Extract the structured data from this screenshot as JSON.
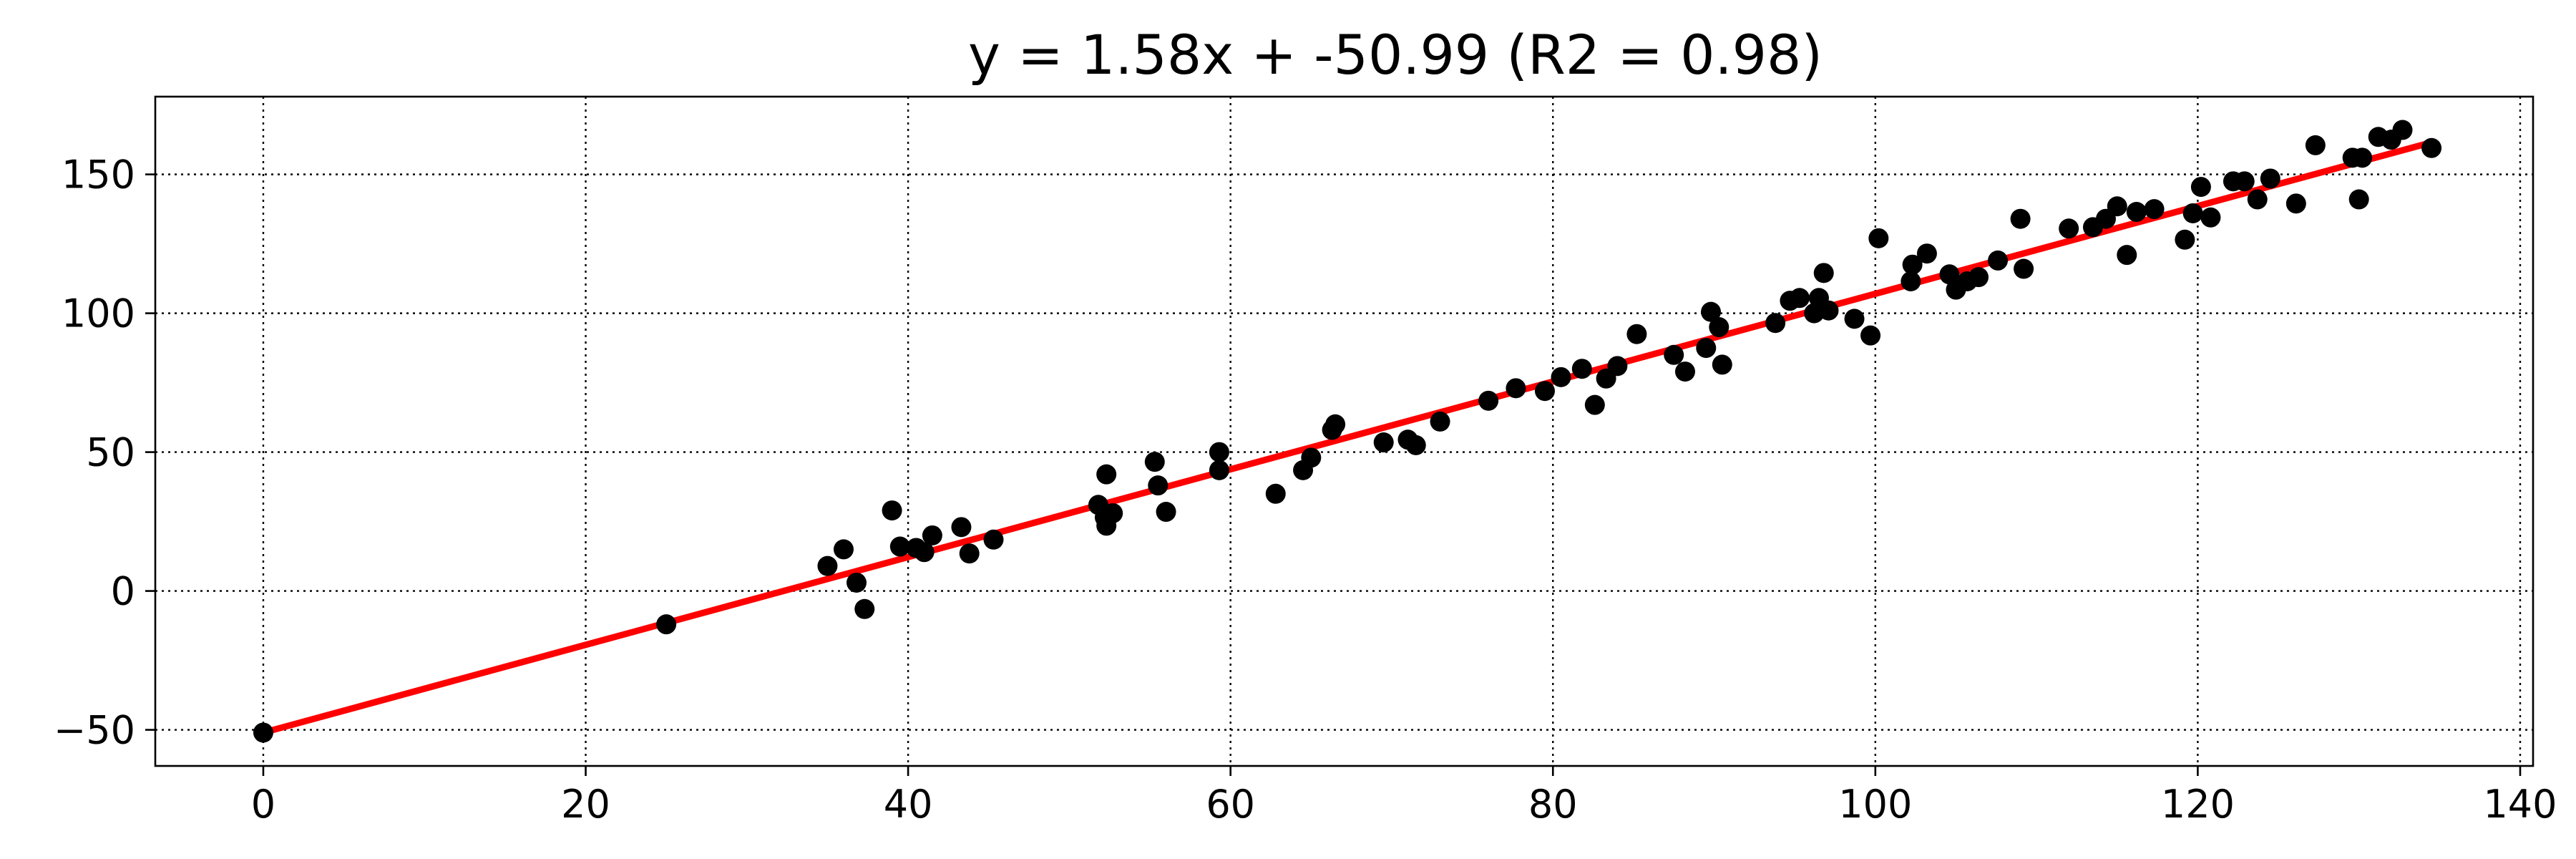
{
  "chart_data": {
    "type": "scatter",
    "title": "y = 1.58x + -50.99 (R2 = 0.98)",
    "xlabel": "",
    "ylabel": "",
    "xlim": [
      -6.7,
      140.8
    ],
    "ylim": [
      -63,
      178
    ],
    "xticks": [
      0,
      20,
      40,
      60,
      80,
      100,
      120,
      140
    ],
    "xtick_labels": [
      "0",
      "20",
      "40",
      "60",
      "80",
      "100",
      "120",
      "140"
    ],
    "yticks": [
      -50,
      0,
      50,
      100,
      150
    ],
    "ytick_labels": [
      "−50",
      "0",
      "50",
      "100",
      "150"
    ],
    "grid": true,
    "point_color": "#000000",
    "fit_line": {
      "slope": 1.58,
      "intercept": -50.99,
      "x_range": [
        0,
        134.5
      ],
      "color": "#ff0000"
    },
    "points": [
      [
        0,
        -51
      ],
      [
        25,
        -12
      ],
      [
        35,
        9
      ],
      [
        36,
        15
      ],
      [
        36.8,
        3
      ],
      [
        37.3,
        -6.5
      ],
      [
        39,
        29
      ],
      [
        39.5,
        16
      ],
      [
        40.5,
        15.5
      ],
      [
        41,
        14
      ],
      [
        41.5,
        20
      ],
      [
        43.3,
        23
      ],
      [
        43.8,
        13.5
      ],
      [
        45.3,
        18.5
      ],
      [
        51.8,
        31
      ],
      [
        52.2,
        26.5
      ],
      [
        52.3,
        23.5
      ],
      [
        52.3,
        42
      ],
      [
        52.7,
        28
      ],
      [
        55.3,
        46.5
      ],
      [
        55.5,
        38
      ],
      [
        56,
        28.5
      ],
      [
        59.3,
        43.5
      ],
      [
        59.3,
        50
      ],
      [
        62.8,
        35
      ],
      [
        64.5,
        43.5
      ],
      [
        65,
        48
      ],
      [
        66.3,
        58
      ],
      [
        66.5,
        60
      ],
      [
        69.5,
        53.5
      ],
      [
        71,
        54.5
      ],
      [
        71.5,
        52.5
      ],
      [
        73,
        61
      ],
      [
        76,
        68.5
      ],
      [
        77.7,
        73
      ],
      [
        79.5,
        72
      ],
      [
        80.5,
        77
      ],
      [
        81.8,
        80
      ],
      [
        82.6,
        67
      ],
      [
        83.3,
        76.5
      ],
      [
        84,
        81
      ],
      [
        85.2,
        92.5
      ],
      [
        87.5,
        85
      ],
      [
        88.2,
        79
      ],
      [
        89.5,
        87.5
      ],
      [
        89.8,
        100.5
      ],
      [
        90.3,
        95
      ],
      [
        90.5,
        81.5
      ],
      [
        93.8,
        96.5
      ],
      [
        94.7,
        104.5
      ],
      [
        95.3,
        105.5
      ],
      [
        96.2,
        100
      ],
      [
        96.5,
        105.5
      ],
      [
        96.8,
        114.5
      ],
      [
        97.1,
        101
      ],
      [
        98.7,
        98
      ],
      [
        99.7,
        92
      ],
      [
        100.2,
        127
      ],
      [
        102.2,
        111.5
      ],
      [
        102.3,
        117.5
      ],
      [
        103.2,
        121.5
      ],
      [
        104.6,
        114
      ],
      [
        105,
        108.5
      ],
      [
        105.7,
        111.5
      ],
      [
        106.4,
        113
      ],
      [
        107.6,
        119
      ],
      [
        109,
        134
      ],
      [
        109.2,
        116
      ],
      [
        112,
        130.5
      ],
      [
        113.5,
        131
      ],
      [
        114.3,
        134
      ],
      [
        115,
        138.5
      ],
      [
        115.6,
        121
      ],
      [
        116.2,
        136.5
      ],
      [
        117.3,
        137.5
      ],
      [
        119.2,
        126.5
      ],
      [
        119.7,
        136
      ],
      [
        120.2,
        145.5
      ],
      [
        120.8,
        134.5
      ],
      [
        122.2,
        147.5
      ],
      [
        122.9,
        147.5
      ],
      [
        123.7,
        141
      ],
      [
        124.5,
        148.5
      ],
      [
        126.1,
        139.5
      ],
      [
        127.3,
        160.5
      ],
      [
        129.6,
        156
      ],
      [
        130,
        141
      ],
      [
        130.2,
        156
      ],
      [
        131.2,
        163.5
      ],
      [
        132,
        162.5
      ],
      [
        132.7,
        166
      ],
      [
        134.5,
        159.5
      ]
    ]
  }
}
